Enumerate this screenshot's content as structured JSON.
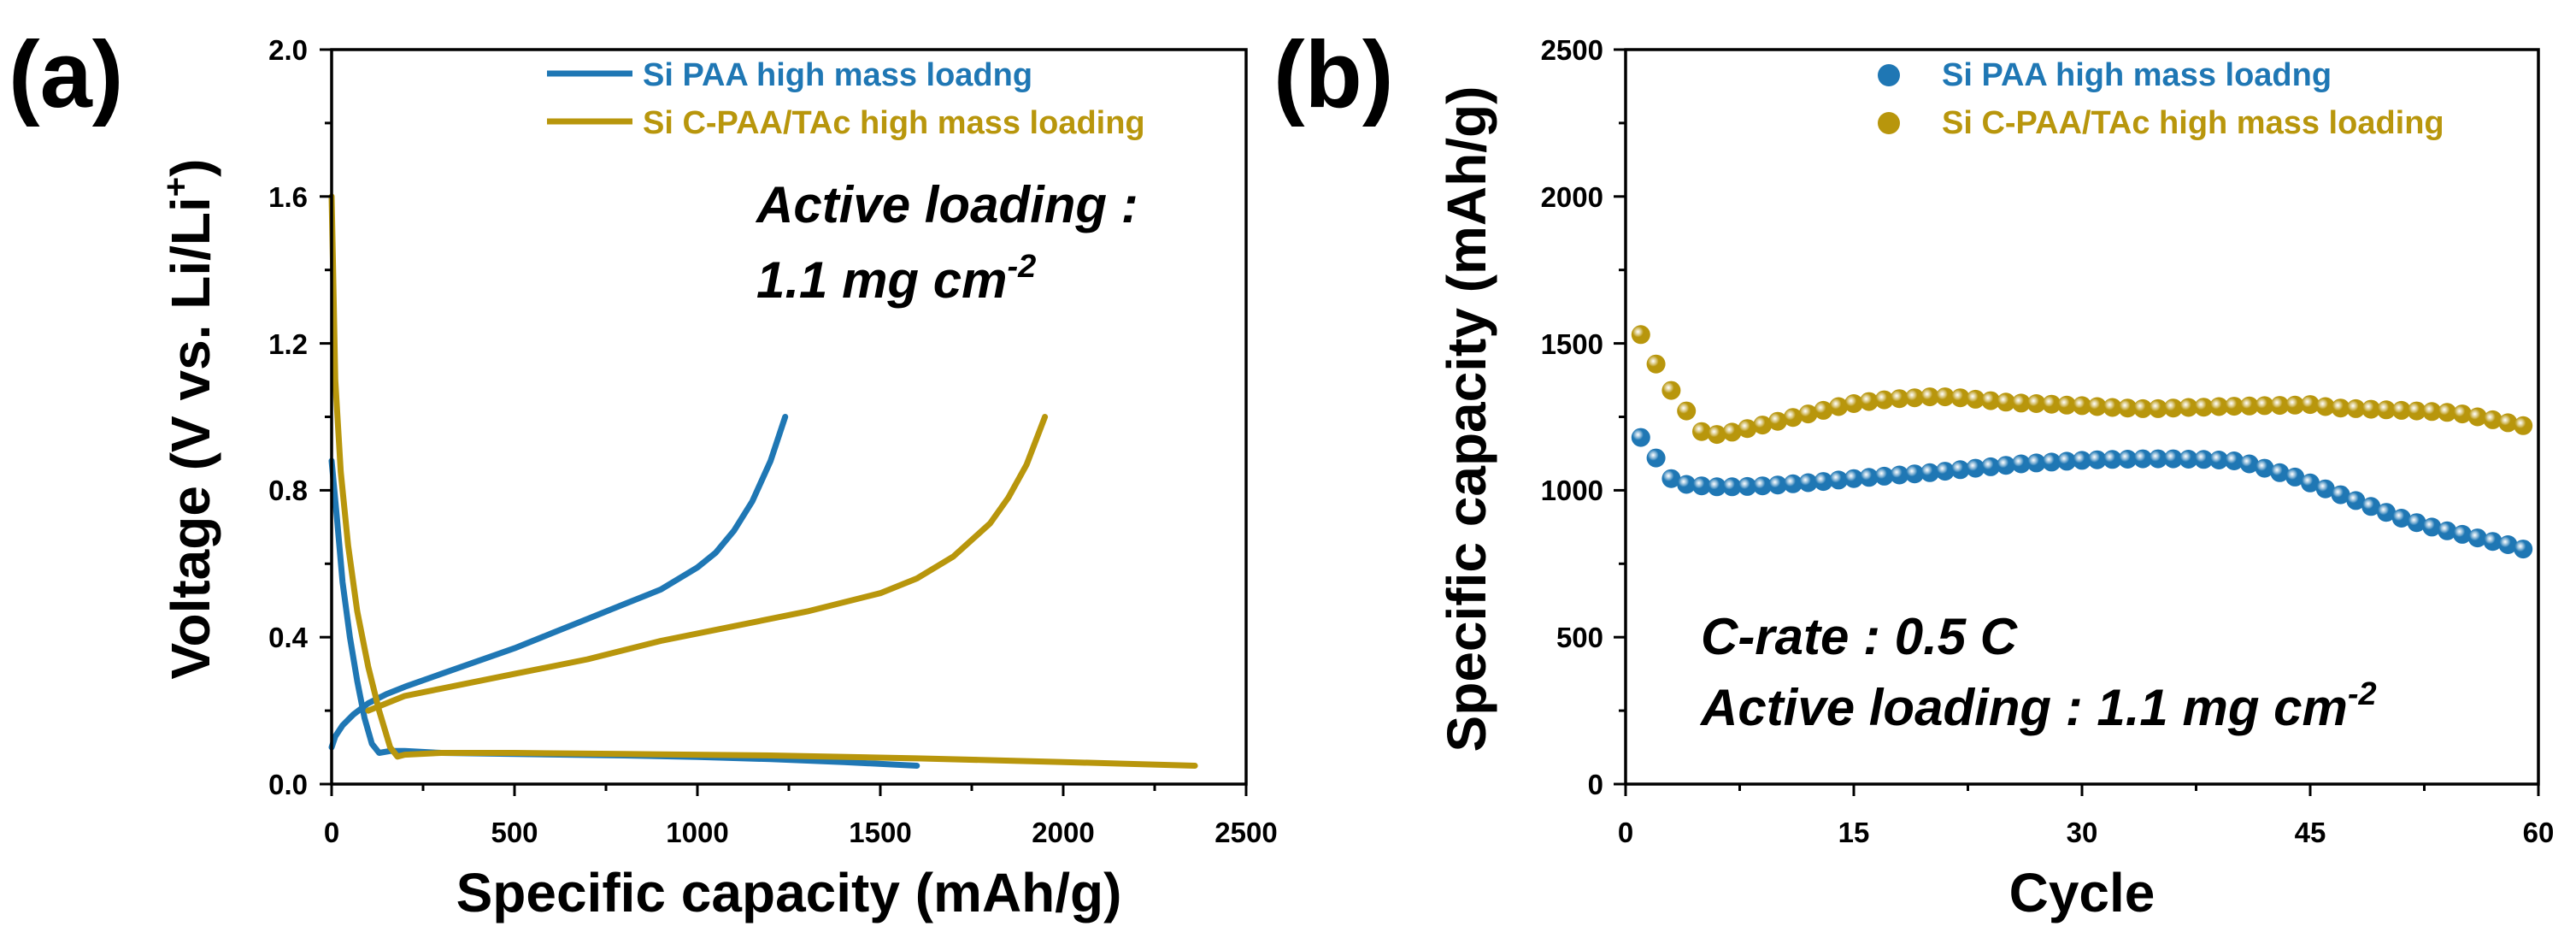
{
  "colors": {
    "si_paa": "#1f77b4",
    "si_cpaa": "#b8960c"
  },
  "chart_data": [
    {
      "type": "line",
      "panel_label": "(a)",
      "title": "",
      "xlabel": "Specific capacity (mAh/g)",
      "ylabel_main": "Voltage (V vs. Li/Li",
      "ylabel_sup": "+",
      "ylabel_end": ")",
      "xlim": [
        0,
        2500
      ],
      "ylim": [
        0.0,
        2.0
      ],
      "xticks": [
        "0",
        "500",
        "1000",
        "1500",
        "2000",
        "2500"
      ],
      "yticks": [
        "0.0",
        "0.4",
        "0.8",
        "1.2",
        "1.6",
        "2.0"
      ],
      "annotation": {
        "line1": "Active loading :",
        "line2_main": "1.1 mg cm",
        "line2_sup": "-2"
      },
      "legend_position": "top-right",
      "series": [
        {
          "name": "Si PAA high mass loadng",
          "color_key": "si_paa",
          "discharge": {
            "x": [
              0,
              15,
              30,
              50,
              70,
              90,
              110,
              130,
              160,
              200,
              300,
              500,
              800,
              1000,
              1200,
              1400,
              1600
            ],
            "y": [
              0.88,
              0.72,
              0.55,
              0.4,
              0.28,
              0.18,
              0.11,
              0.085,
              0.09,
              0.09,
              0.085,
              0.082,
              0.078,
              0.074,
              0.068,
              0.06,
              0.05
            ]
          },
          "charge": {
            "x": [
              0,
              10,
              30,
              60,
              100,
              150,
              200,
              300,
              400,
              500,
              600,
              700,
              800,
              900,
              1000,
              1050,
              1100,
              1150,
              1200,
              1240
            ],
            "y": [
              0.1,
              0.13,
              0.16,
              0.19,
              0.22,
              0.245,
              0.265,
              0.3,
              0.335,
              0.37,
              0.41,
              0.45,
              0.49,
              0.53,
              0.59,
              0.63,
              0.69,
              0.77,
              0.88,
              1.0
            ]
          }
        },
        {
          "name": "Si C-PAA/TAc high mass loading",
          "color_key": "si_cpaa",
          "discharge": {
            "x": [
              0,
              10,
              25,
              45,
              70,
              100,
              130,
              160,
              180,
              200,
              300,
              500,
              800,
              1200,
              1600,
              2000,
              2360
            ],
            "y": [
              1.6,
              1.1,
              0.85,
              0.65,
              0.47,
              0.32,
              0.2,
              0.1,
              0.075,
              0.08,
              0.085,
              0.085,
              0.082,
              0.078,
              0.07,
              0.06,
              0.05
            ]
          },
          "charge": {
            "x": [
              100,
              150,
              200,
              300,
              400,
              500,
              700,
              900,
              1100,
              1300,
              1500,
              1600,
              1700,
              1800,
              1850,
              1900,
              1950
            ],
            "y": [
              0.2,
              0.22,
              0.24,
              0.26,
              0.28,
              0.3,
              0.34,
              0.39,
              0.43,
              0.47,
              0.52,
              0.56,
              0.62,
              0.71,
              0.78,
              0.87,
              1.0
            ]
          }
        }
      ]
    },
    {
      "type": "scatter",
      "panel_label": "(b)",
      "title": "",
      "xlabel": "Cycle",
      "ylabel": "Specific capacity (mAh/g)",
      "xlim": [
        0,
        60
      ],
      "ylim": [
        0,
        2500
      ],
      "xticks": [
        "0",
        "15",
        "30",
        "45",
        "60"
      ],
      "yticks": [
        "0",
        "500",
        "1000",
        "1500",
        "2000",
        "2500"
      ],
      "annotation": {
        "line1": "C-rate : 0.5 C",
        "line2_main": "Active loading : 1.1 mg cm",
        "line2_sup": "-2"
      },
      "legend_position": "top-right",
      "series": [
        {
          "name": "Si PAA high mass loadng",
          "color_key": "si_paa",
          "x": [
            1,
            2,
            3,
            4,
            5,
            6,
            7,
            8,
            9,
            10,
            11,
            12,
            13,
            14,
            15,
            16,
            17,
            18,
            19,
            20,
            21,
            22,
            23,
            24,
            25,
            26,
            27,
            28,
            29,
            30,
            31,
            32,
            33,
            34,
            35,
            36,
            37,
            38,
            39,
            40,
            41,
            42,
            43,
            44,
            45,
            46,
            47,
            48,
            49,
            50,
            51,
            52,
            53,
            54,
            55,
            56,
            57,
            58,
            59
          ],
          "y": [
            1180,
            1110,
            1040,
            1020,
            1015,
            1012,
            1012,
            1013,
            1015,
            1018,
            1022,
            1026,
            1030,
            1035,
            1040,
            1044,
            1048,
            1052,
            1056,
            1060,
            1065,
            1070,
            1075,
            1080,
            1085,
            1090,
            1093,
            1096,
            1099,
            1102,
            1104,
            1105,
            1106,
            1107,
            1107,
            1107,
            1106,
            1105,
            1103,
            1100,
            1090,
            1075,
            1060,
            1045,
            1025,
            1005,
            985,
            965,
            945,
            925,
            905,
            890,
            875,
            862,
            850,
            838,
            826,
            815,
            800
          ]
        },
        {
          "name": "Si C-PAA/TAc high mass loading",
          "color_key": "si_cpaa",
          "x": [
            1,
            2,
            3,
            4,
            5,
            6,
            7,
            8,
            9,
            10,
            11,
            12,
            13,
            14,
            15,
            16,
            17,
            18,
            19,
            20,
            21,
            22,
            23,
            24,
            25,
            26,
            27,
            28,
            29,
            30,
            31,
            32,
            33,
            34,
            35,
            36,
            37,
            38,
            39,
            40,
            41,
            42,
            43,
            44,
            45,
            46,
            47,
            48,
            49,
            50,
            51,
            52,
            53,
            54,
            55,
            56,
            57,
            58,
            59
          ],
          "y": [
            1530,
            1430,
            1340,
            1270,
            1200,
            1190,
            1198,
            1210,
            1222,
            1235,
            1248,
            1260,
            1272,
            1285,
            1295,
            1302,
            1308,
            1312,
            1315,
            1318,
            1318,
            1315,
            1310,
            1305,
            1300,
            1297,
            1295,
            1293,
            1290,
            1288,
            1285,
            1282,
            1280,
            1278,
            1278,
            1280,
            1282,
            1283,
            1285,
            1286,
            1287,
            1288,
            1289,
            1290,
            1292,
            1285,
            1280,
            1278,
            1276,
            1274,
            1272,
            1270,
            1268,
            1265,
            1260,
            1250,
            1240,
            1230,
            1220
          ]
        }
      ]
    }
  ]
}
